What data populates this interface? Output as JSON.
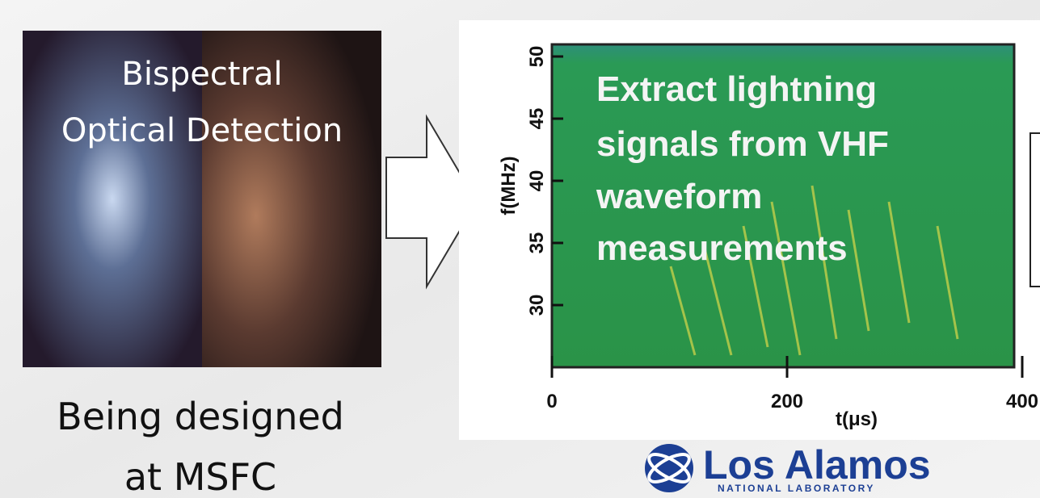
{
  "left_panel": {
    "image_caption": [
      "Bispectral",
      "Optical Detection"
    ],
    "subtitle": [
      "Being designed",
      "at MSFC"
    ]
  },
  "spectrogram": {
    "annotation": [
      "Extract lightning",
      "signals from VHF",
      "waveform",
      "measurements"
    ],
    "y_label": "f(MHz)",
    "y_ticks": [
      50,
      45,
      40,
      35,
      30
    ],
    "x_label": "t(μs)",
    "x_ticks": [
      0,
      200,
      400
    ]
  },
  "logo": {
    "name": "Los Alamos",
    "tagline": "NATIONAL LABORATORY"
  }
}
